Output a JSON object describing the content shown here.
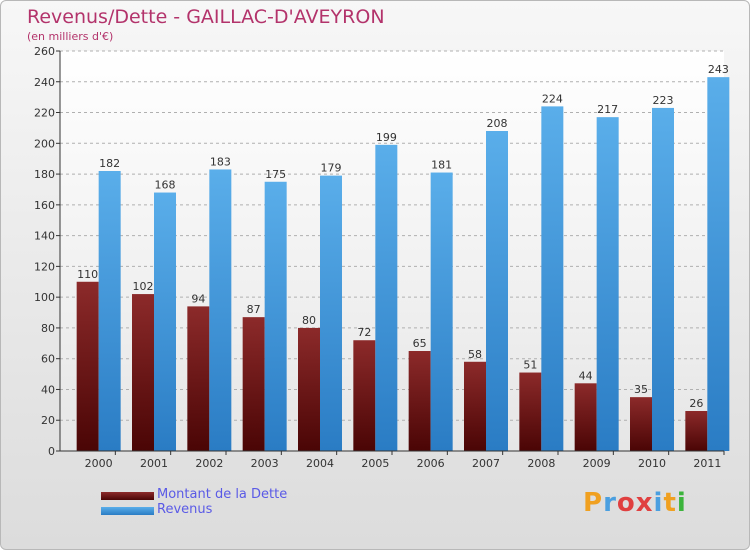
{
  "title": "Revenus/Dette - GAILLAC-D'AVEYRON",
  "subtitle": "(en milliers d'€)",
  "colors": {
    "title": "#b3336b",
    "debt": "#7a1a1a",
    "revenue": "#4a9fe0",
    "legend_text": "#5a5ae6"
  },
  "legend": {
    "debt_label": "Montant de la Dette",
    "revenue_label": "Revenus"
  },
  "logo": {
    "letters": [
      "P",
      "r",
      "o",
      "x",
      "i",
      "t",
      "i"
    ],
    "letter_colors": [
      "#f0a020",
      "#4a9fe0",
      "#e04040",
      "#e04040",
      "#4a9fe0",
      "#f0a020",
      "#3cb43c"
    ]
  },
  "chart_data": {
    "type": "bar",
    "title": "Revenus/Dette - GAILLAC-D'AVEYRON",
    "ylabel": "(en milliers d'€)",
    "xlabel": "",
    "categories": [
      "2000",
      "2001",
      "2002",
      "2003",
      "2004",
      "2005",
      "2006",
      "2007",
      "2008",
      "2009",
      "2010",
      "2011"
    ],
    "series": [
      {
        "name": "Montant de la Dette",
        "values": [
          110,
          102,
          94,
          87,
          80,
          72,
          65,
          58,
          51,
          44,
          35,
          26
        ]
      },
      {
        "name": "Revenus",
        "values": [
          182,
          168,
          183,
          175,
          179,
          199,
          181,
          208,
          224,
          217,
          223,
          243
        ]
      }
    ],
    "ylim": [
      0,
      260
    ],
    "yticks": [
      0,
      20,
      40,
      60,
      80,
      100,
      120,
      140,
      160,
      180,
      200,
      220,
      240,
      260
    ],
    "grid": true,
    "legend_position": "bottom-left"
  }
}
